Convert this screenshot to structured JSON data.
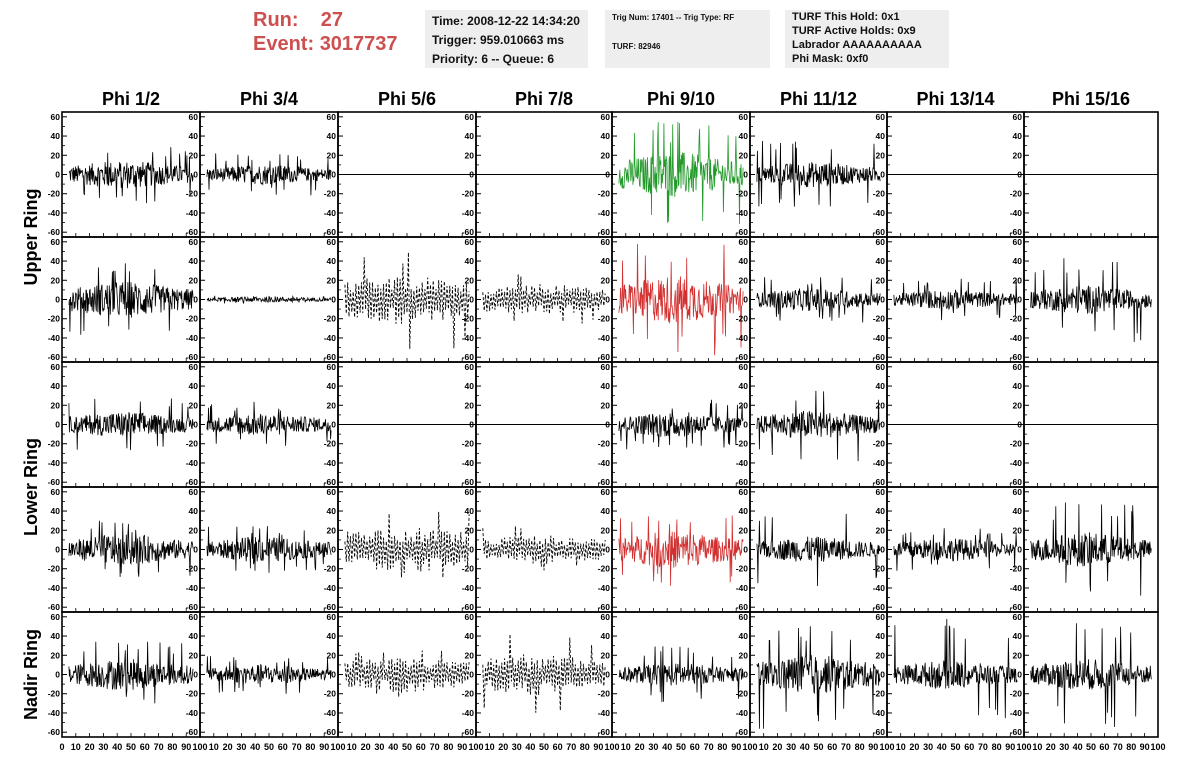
{
  "header": {
    "run_label": "Run:",
    "run_value": "27",
    "event_label": "Event:",
    "event_value": "3017737",
    "box1": {
      "time": "Time: 2008-12-22 14:34:20",
      "trigger": "Trigger: 959.010663 ms",
      "priority": "Priority: 6 -- Queue: 6"
    },
    "box2": {
      "trig": "Trig Num: 17401 -- Trig Type: RF",
      "turf": "TURF: 82946"
    },
    "box3": {
      "hold": "TURF This Hold: 0x1",
      "active": "TURF Active Holds: 0x9",
      "labrador": "Labrador AAAAAAAAAA",
      "phimask": "Phi Mask: 0xf0"
    }
  },
  "chart_data": {
    "type": "line",
    "columns": [
      "Phi 1/2",
      "Phi 3/4",
      "Phi 5/6",
      "Phi 7/8",
      "Phi 9/10",
      "Phi 11/12",
      "Phi 13/14",
      "Phi 15/16"
    ],
    "row_labels": [
      {
        "text": "Upper Ring",
        "rows": [
          0,
          1
        ]
      },
      {
        "text": "Lower Ring",
        "rows": [
          2,
          3
        ]
      },
      {
        "text": "Nadir Ring",
        "rows": [
          4
        ]
      }
    ],
    "xlim": [
      0,
      100
    ],
    "ylim": [
      -65,
      65
    ],
    "yticks": [
      -60,
      -40,
      -20,
      0,
      20,
      40,
      60
    ],
    "xtick_labels_per_panel": [
      "0",
      "10",
      "20",
      "30",
      "40",
      "50",
      "60",
      "70",
      "80",
      "90",
      "100"
    ],
    "colors": {
      "normal": "#000000",
      "triggered": "#22992a",
      "highlight": "#d23030"
    },
    "panels": [
      [
        {
          "style": "solid",
          "color": "normal",
          "amp": 10,
          "spike": 30
        },
        {
          "style": "solid",
          "color": "normal",
          "amp": 7,
          "spike": 22
        },
        {
          "style": "flat"
        },
        {
          "style": "flat"
        },
        {
          "style": "solid",
          "color": "triggered",
          "amp": 16,
          "spike": 55
        },
        {
          "style": "solid",
          "color": "normal",
          "amp": 9,
          "spike": 35
        },
        {
          "style": "flat"
        },
        {
          "style": "flat"
        }
      ],
      [
        {
          "style": "solid",
          "color": "normal",
          "amp": 13,
          "spike": 45
        },
        {
          "style": "solid",
          "color": "normal",
          "amp": 2,
          "spike": 4
        },
        {
          "style": "dashed",
          "color": "normal",
          "amp": 16,
          "spike": 55
        },
        {
          "style": "dashed",
          "color": "normal",
          "amp": 10,
          "spike": 30
        },
        {
          "style": "solid",
          "color": "highlight",
          "amp": 17,
          "spike": 58
        },
        {
          "style": "solid",
          "color": "normal",
          "amp": 8,
          "spike": 25
        },
        {
          "style": "solid",
          "color": "normal",
          "amp": 7,
          "spike": 22
        },
        {
          "style": "solid",
          "color": "normal",
          "amp": 10,
          "spike": 45
        }
      ],
      [
        {
          "style": "solid",
          "color": "normal",
          "amp": 9,
          "spike": 28
        },
        {
          "style": "solid",
          "color": "normal",
          "amp": 8,
          "spike": 24
        },
        {
          "style": "flat"
        },
        {
          "style": "flat"
        },
        {
          "style": "solid",
          "color": "normal",
          "amp": 9,
          "spike": 26
        },
        {
          "style": "solid",
          "color": "normal",
          "amp": 10,
          "spike": 40
        },
        {
          "style": "flat"
        },
        {
          "style": "flat"
        }
      ],
      [
        {
          "style": "solid",
          "color": "normal",
          "amp": 11,
          "spike": 30
        },
        {
          "style": "solid",
          "color": "normal",
          "amp": 9,
          "spike": 25
        },
        {
          "style": "dashed",
          "color": "normal",
          "amp": 15,
          "spike": 40
        },
        {
          "style": "dashed",
          "color": "normal",
          "amp": 9,
          "spike": 25
        },
        {
          "style": "solid",
          "color": "highlight",
          "amp": 13,
          "spike": 38
        },
        {
          "style": "solid",
          "color": "normal",
          "amp": 9,
          "spike": 40
        },
        {
          "style": "solid",
          "color": "normal",
          "amp": 8,
          "spike": 25
        },
        {
          "style": "solid",
          "color": "normal",
          "amp": 12,
          "spike": 50
        }
      ],
      [
        {
          "style": "solid",
          "color": "normal",
          "amp": 11,
          "spike": 35
        },
        {
          "style": "solid",
          "color": "normal",
          "amp": 7,
          "spike": 20
        },
        {
          "style": "dashed",
          "color": "normal",
          "amp": 11,
          "spike": 25
        },
        {
          "style": "dashed",
          "color": "normal",
          "amp": 13,
          "spike": 45
        },
        {
          "style": "solid",
          "color": "normal",
          "amp": 8,
          "spike": 30
        },
        {
          "style": "solid",
          "color": "normal",
          "amp": 14,
          "spike": 58
        },
        {
          "style": "solid",
          "color": "normal",
          "amp": 10,
          "spike": 58
        },
        {
          "style": "solid",
          "color": "normal",
          "amp": 11,
          "spike": 55
        }
      ]
    ]
  }
}
